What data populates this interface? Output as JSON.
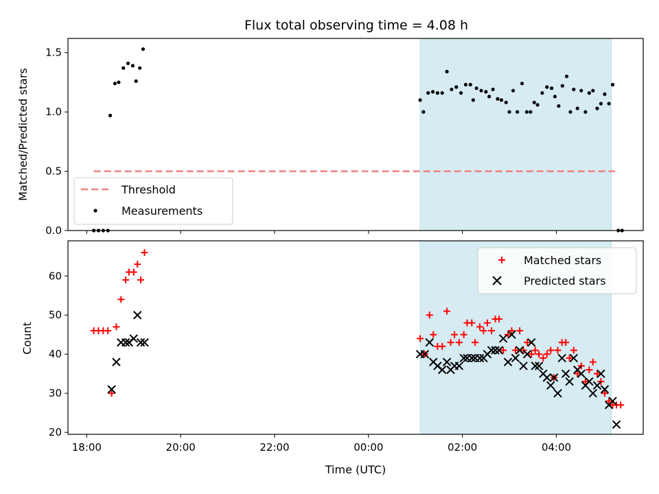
{
  "chart_data": [
    {
      "type": "scatter",
      "title": "Flux total observing time = 4.08 h",
      "xlabel": "",
      "ylabel": "Matched/Predicted stars",
      "x_unit": "hours since 00:00 UTC",
      "xlim": [
        -6.4,
        5.85
      ],
      "ylim": [
        0,
        1.62
      ],
      "yticks": [
        0.0,
        0.5,
        1.0,
        1.5
      ],
      "ytick_labels": [
        "0.0",
        "0.5",
        "1.0",
        "1.5"
      ],
      "threshold": {
        "name": "Threshold",
        "value": 0.5,
        "x_range": [
          -5.85,
          5.25
        ],
        "color": "#f08080"
      },
      "shaded_region": {
        "x_range": [
          1.1,
          5.17
        ],
        "color": "#add8e6"
      },
      "legend": {
        "position": "lower-left",
        "entries": [
          "Threshold",
          "Measurements"
        ]
      },
      "series": [
        {
          "name": "Measurements",
          "color": "#000000",
          "points": [
            [
              -5.85,
              0
            ],
            [
              -5.75,
              0
            ],
            [
              -5.65,
              0
            ],
            [
              -5.55,
              0
            ],
            [
              -5.5,
              0.97
            ],
            [
              -5.4,
              1.24
            ],
            [
              -5.32,
              1.25
            ],
            [
              -5.22,
              1.37
            ],
            [
              -5.12,
              1.41
            ],
            [
              -5.02,
              1.39
            ],
            [
              -4.95,
              1.26
            ],
            [
              -4.87,
              1.37
            ],
            [
              -4.8,
              1.53
            ],
            [
              1.1,
              1.1
            ],
            [
              1.17,
              1.0
            ],
            [
              1.27,
              1.16
            ],
            [
              1.37,
              1.17
            ],
            [
              1.47,
              1.16
            ],
            [
              1.57,
              1.16
            ],
            [
              1.67,
              1.34
            ],
            [
              1.77,
              1.19
            ],
            [
              1.87,
              1.21
            ],
            [
              1.97,
              1.16
            ],
            [
              2.07,
              1.23
            ],
            [
              2.17,
              1.23
            ],
            [
              2.23,
              1.1
            ],
            [
              2.3,
              1.2
            ],
            [
              2.4,
              1.18
            ],
            [
              2.5,
              1.17
            ],
            [
              2.57,
              1.13
            ],
            [
              2.65,
              1.19
            ],
            [
              2.75,
              1.11
            ],
            [
              2.83,
              1.1
            ],
            [
              2.93,
              1.08
            ],
            [
              3.0,
              1.0
            ],
            [
              3.08,
              1.18
            ],
            [
              3.17,
              1.0
            ],
            [
              3.27,
              1.24
            ],
            [
              3.37,
              1.0
            ],
            [
              3.45,
              1.0
            ],
            [
              3.53,
              1.08
            ],
            [
              3.6,
              1.06
            ],
            [
              3.7,
              1.16
            ],
            [
              3.8,
              1.21
            ],
            [
              3.9,
              1.2
            ],
            [
              3.97,
              1.13
            ],
            [
              4.05,
              1.05
            ],
            [
              4.13,
              1.22
            ],
            [
              4.22,
              1.3
            ],
            [
              4.3,
              1.0
            ],
            [
              4.37,
              1.19
            ],
            [
              4.45,
              1.03
            ],
            [
              4.53,
              1.18
            ],
            [
              4.62,
              1.0
            ],
            [
              4.7,
              1.16
            ],
            [
              4.78,
              1.18
            ],
            [
              4.87,
              1.03
            ],
            [
              4.95,
              1.07
            ],
            [
              5.03,
              1.15
            ],
            [
              5.12,
              1.07
            ],
            [
              5.2,
              1.23
            ],
            [
              5.32,
              0
            ],
            [
              5.4,
              0
            ]
          ]
        }
      ]
    },
    {
      "type": "scatter",
      "title": "",
      "xlabel": "Time (UTC)",
      "ylabel": "Count",
      "x_unit": "hours since 00:00 UTC",
      "xlim": [
        -6.4,
        5.85
      ],
      "ylim": [
        19.5,
        69
      ],
      "yticks": [
        20,
        30,
        40,
        50,
        60
      ],
      "ytick_labels": [
        "20",
        "30",
        "40",
        "50",
        "60"
      ],
      "xticks": [
        -6,
        -4,
        -2,
        0,
        2,
        4
      ],
      "xtick_labels": [
        "18:00",
        "20:00",
        "22:00",
        "00:00",
        "02:00",
        "04:00"
      ],
      "shaded_region": {
        "x_range": [
          1.1,
          5.17
        ],
        "color": "#add8e6"
      },
      "legend": {
        "position": "top-right",
        "entries": [
          "Matched stars",
          "Predicted stars"
        ]
      },
      "series": [
        {
          "name": "Matched stars",
          "marker": "plus",
          "color": "#ff0000",
          "points": [
            [
              -5.85,
              46
            ],
            [
              -5.75,
              46
            ],
            [
              -5.65,
              46
            ],
            [
              -5.55,
              46
            ],
            [
              -5.47,
              30
            ],
            [
              -5.37,
              47
            ],
            [
              -5.27,
              54
            ],
            [
              -5.17,
              59
            ],
            [
              -5.1,
              61
            ],
            [
              -5.0,
              61
            ],
            [
              -4.92,
              63
            ],
            [
              -4.85,
              59
            ],
            [
              -4.77,
              66
            ],
            [
              1.1,
              44
            ],
            [
              1.2,
              40
            ],
            [
              1.3,
              50
            ],
            [
              1.38,
              45
            ],
            [
              1.47,
              42
            ],
            [
              1.57,
              42
            ],
            [
              1.67,
              51
            ],
            [
              1.75,
              43
            ],
            [
              1.83,
              45
            ],
            [
              1.93,
              43
            ],
            [
              2.03,
              45
            ],
            [
              2.1,
              48
            ],
            [
              2.2,
              48
            ],
            [
              2.27,
              43
            ],
            [
              2.37,
              47
            ],
            [
              2.45,
              46
            ],
            [
              2.53,
              48
            ],
            [
              2.62,
              46
            ],
            [
              2.7,
              49
            ],
            [
              2.78,
              49
            ],
            [
              2.87,
              41
            ],
            [
              2.97,
              45
            ],
            [
              3.05,
              46
            ],
            [
              3.13,
              41
            ],
            [
              3.22,
              46
            ],
            [
              3.3,
              41
            ],
            [
              3.38,
              43
            ],
            [
              3.47,
              40
            ],
            [
              3.55,
              41
            ],
            [
              3.63,
              40
            ],
            [
              3.72,
              39
            ],
            [
              3.8,
              40
            ],
            [
              3.88,
              41
            ],
            [
              3.95,
              34
            ],
            [
              4.03,
              41
            ],
            [
              4.12,
              43
            ],
            [
              4.2,
              43
            ],
            [
              4.28,
              39
            ],
            [
              4.37,
              41
            ],
            [
              4.45,
              35
            ],
            [
              4.53,
              37
            ],
            [
              4.62,
              33
            ],
            [
              4.7,
              36
            ],
            [
              4.78,
              38
            ],
            [
              4.87,
              35
            ],
            [
              4.95,
              33
            ],
            [
              5.03,
              30
            ],
            [
              5.12,
              28
            ],
            [
              5.2,
              27
            ],
            [
              5.28,
              27
            ],
            [
              5.37,
              27
            ]
          ]
        },
        {
          "name": "Predicted stars",
          "marker": "x",
          "color": "#000000",
          "points": [
            [
              -5.47,
              31
            ],
            [
              -5.37,
              38
            ],
            [
              -5.27,
              43
            ],
            [
              -5.17,
              43
            ],
            [
              -5.1,
              43
            ],
            [
              -5.0,
              44
            ],
            [
              -4.92,
              50
            ],
            [
              -4.85,
              43
            ],
            [
              -4.77,
              43
            ],
            [
              1.1,
              40
            ],
            [
              1.2,
              40
            ],
            [
              1.3,
              43
            ],
            [
              1.38,
              38
            ],
            [
              1.47,
              37
            ],
            [
              1.57,
              36
            ],
            [
              1.67,
              38
            ],
            [
              1.75,
              36
            ],
            [
              1.83,
              37
            ],
            [
              1.93,
              37
            ],
            [
              2.03,
              39
            ],
            [
              2.1,
              39
            ],
            [
              2.2,
              39
            ],
            [
              2.27,
              39
            ],
            [
              2.37,
              39
            ],
            [
              2.45,
              39
            ],
            [
              2.53,
              40
            ],
            [
              2.62,
              41
            ],
            [
              2.7,
              41
            ],
            [
              2.78,
              41
            ],
            [
              2.87,
              44
            ],
            [
              2.97,
              38
            ],
            [
              3.05,
              45
            ],
            [
              3.13,
              39
            ],
            [
              3.22,
              41
            ],
            [
              3.3,
              37
            ],
            [
              3.38,
              40
            ],
            [
              3.47,
              43
            ],
            [
              3.55,
              37
            ],
            [
              3.63,
              37
            ],
            [
              3.72,
              35
            ],
            [
              3.8,
              34
            ],
            [
              3.88,
              32
            ],
            [
              3.95,
              34
            ],
            [
              4.03,
              30
            ],
            [
              4.12,
              39
            ],
            [
              4.2,
              35
            ],
            [
              4.28,
              33
            ],
            [
              4.37,
              39
            ],
            [
              4.45,
              36
            ],
            [
              4.53,
              35
            ],
            [
              4.62,
              32
            ],
            [
              4.7,
              33
            ],
            [
              4.78,
              30
            ],
            [
              4.87,
              32
            ],
            [
              4.95,
              35
            ],
            [
              5.03,
              31
            ],
            [
              5.12,
              27
            ],
            [
              5.2,
              28
            ],
            [
              5.28,
              22
            ]
          ]
        }
      ]
    }
  ]
}
